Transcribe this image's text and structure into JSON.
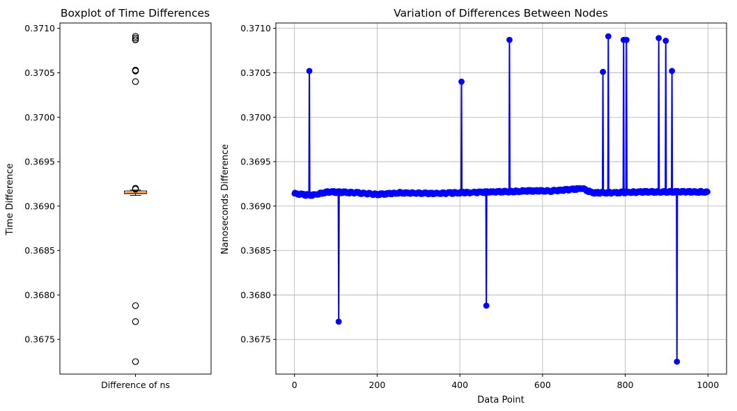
{
  "chart_data": [
    {
      "type": "boxplot",
      "title": "Boxplot of Time Differences",
      "xlabel": "",
      "ylabel": "Time Difference",
      "categories": [
        "Difference of ns"
      ],
      "ylim": [
        0.36711,
        0.37106
      ],
      "yticks": [
        "0.3675",
        "0.3680",
        "0.3685",
        "0.3690",
        "0.3695",
        "0.3700",
        "0.3705",
        "0.3710"
      ],
      "ytick_values": [
        0.3675,
        0.368,
        0.3685,
        0.369,
        0.3695,
        0.37,
        0.3705,
        0.371
      ],
      "box": {
        "whisker_low": 0.36912,
        "q1": 0.36914,
        "median": 0.36915,
        "q3": 0.36917,
        "whisker_high": 0.36918
      },
      "outliers": [
        0.37091,
        0.37089,
        0.37087,
        0.37087,
        0.37053,
        0.37052,
        0.37052,
        0.3704,
        0.3692,
        0.36919,
        0.36788,
        0.3677,
        0.36725
      ],
      "colors": {
        "median": "#ff7f0e",
        "box": "#000000"
      }
    },
    {
      "type": "line",
      "title": "Variation of Differences Between Nodes",
      "xlabel": "Data Point",
      "ylabel": "Nanoseconds Difference",
      "xlim": [
        -45,
        1045
      ],
      "ylim": [
        0.36711,
        0.37106
      ],
      "xticks": [
        "0",
        "200",
        "400",
        "600",
        "800",
        "1000"
      ],
      "xtick_values": [
        0,
        200,
        400,
        600,
        800,
        1000
      ],
      "yticks": [
        "0.3675",
        "0.3680",
        "0.3685",
        "0.3690",
        "0.3695",
        "0.3700",
        "0.3705",
        "0.3710"
      ],
      "ytick_values": [
        0.3675,
        0.368,
        0.3685,
        0.369,
        0.3695,
        0.37,
        0.3705,
        0.371
      ],
      "grid": true,
      "n_points": 1000,
      "baseline": [
        [
          0,
          0.36914
        ],
        [
          40,
          0.36912
        ],
        [
          80,
          0.36916
        ],
        [
          150,
          0.36915
        ],
        [
          200,
          0.36913
        ],
        [
          260,
          0.36915
        ],
        [
          330,
          0.36914
        ],
        [
          400,
          0.36915
        ],
        [
          500,
          0.36916
        ],
        [
          560,
          0.36917
        ],
        [
          620,
          0.36917
        ],
        [
          680,
          0.36919
        ],
        [
          695,
          0.3692
        ],
        [
          720,
          0.36915
        ],
        [
          760,
          0.36915
        ],
        [
          850,
          0.36916
        ],
        [
          1000,
          0.36916
        ]
      ],
      "spikes": [
        {
          "x": 36,
          "y": 0.37052
        },
        {
          "x": 107,
          "y": 0.3677
        },
        {
          "x": 404,
          "y": 0.3704
        },
        {
          "x": 464,
          "y": 0.36788
        },
        {
          "x": 520,
          "y": 0.37087
        },
        {
          "x": 746,
          "y": 0.37051
        },
        {
          "x": 759,
          "y": 0.37091
        },
        {
          "x": 796,
          "y": 0.37087
        },
        {
          "x": 803,
          "y": 0.37087
        },
        {
          "x": 881,
          "y": 0.37089
        },
        {
          "x": 898,
          "y": 0.37086
        },
        {
          "x": 913,
          "y": 0.37052
        },
        {
          "x": 925,
          "y": 0.36725
        }
      ],
      "color": "#0000ff"
    }
  ]
}
